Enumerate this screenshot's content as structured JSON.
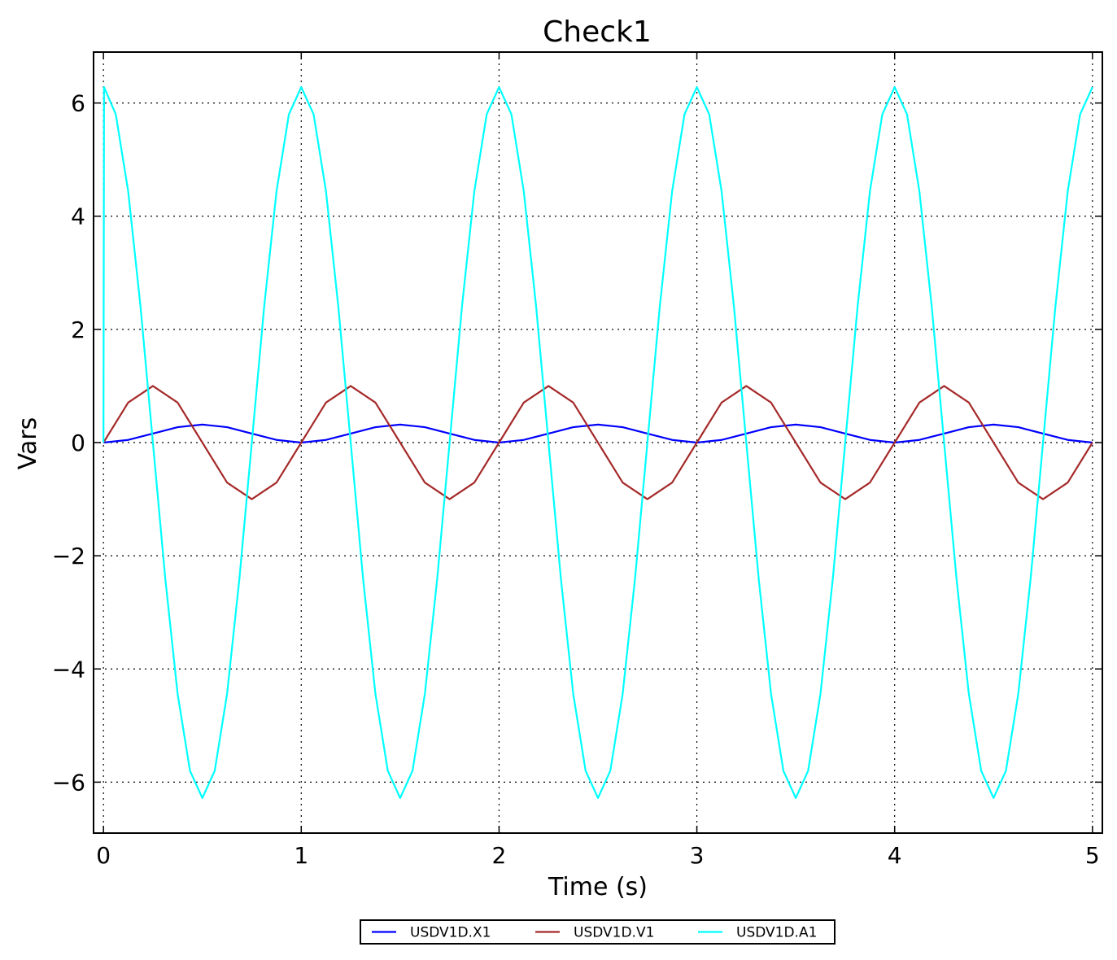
{
  "chart_data": {
    "type": "line",
    "title": "Check1",
    "xlabel": "Time (s)",
    "ylabel": "Vars",
    "xlim": [
      -0.05,
      5.05
    ],
    "ylim": [
      -6.9,
      6.9
    ],
    "xticks": [
      0,
      1,
      2,
      3,
      4,
      5
    ],
    "xtick_labels": [
      "0",
      "1",
      "2",
      "3",
      "4",
      "5"
    ],
    "yticks": [
      -6,
      -4,
      -2,
      0,
      2,
      4,
      6
    ],
    "ytick_labels": [
      "−6",
      "−4",
      "−2",
      "0",
      "2",
      "4",
      "6"
    ],
    "grid": true,
    "grid_style": "dotted",
    "legend_position": "bottom-center",
    "series": [
      {
        "name": "USDV1D.X1",
        "color": "#0000ff",
        "x": [
          0,
          0.125,
          0.25,
          0.375,
          0.5,
          0.625,
          0.75,
          0.875,
          1,
          1.125,
          1.25,
          1.375,
          1.5,
          1.625,
          1.75,
          1.875,
          2,
          2.125,
          2.25,
          2.375,
          2.5,
          2.625,
          2.75,
          2.875,
          3,
          3.125,
          3.25,
          3.375,
          3.5,
          3.625,
          3.75,
          3.875,
          4,
          4.125,
          4.25,
          4.375,
          4.5,
          4.625,
          4.75,
          4.875,
          5
        ],
        "y": [
          0,
          0.047,
          0.159,
          0.272,
          0.318,
          0.272,
          0.159,
          0.047,
          0,
          0.047,
          0.159,
          0.272,
          0.318,
          0.272,
          0.159,
          0.047,
          0,
          0.047,
          0.159,
          0.272,
          0.318,
          0.272,
          0.159,
          0.047,
          0,
          0.047,
          0.159,
          0.272,
          0.318,
          0.272,
          0.159,
          0.047,
          0,
          0.047,
          0.159,
          0.272,
          0.318,
          0.272,
          0.159,
          0.047,
          0
        ]
      },
      {
        "name": "USDV1D.V1",
        "color": "#a52a2a",
        "x": [
          0,
          0.125,
          0.25,
          0.375,
          0.5,
          0.625,
          0.75,
          0.875,
          1,
          1.125,
          1.25,
          1.375,
          1.5,
          1.625,
          1.75,
          1.875,
          2,
          2.125,
          2.25,
          2.375,
          2.5,
          2.625,
          2.75,
          2.875,
          3,
          3.125,
          3.25,
          3.375,
          3.5,
          3.625,
          3.75,
          3.875,
          4,
          4.125,
          4.25,
          4.375,
          4.5,
          4.625,
          4.75,
          4.875,
          5
        ],
        "y": [
          0,
          0.707,
          1,
          0.707,
          0,
          -0.707,
          -1,
          -0.707,
          0,
          0.707,
          1,
          0.707,
          0,
          -0.707,
          -1,
          -0.707,
          0,
          0.707,
          1,
          0.707,
          0,
          -0.707,
          -1,
          -0.707,
          0,
          0.707,
          1,
          0.707,
          0,
          -0.707,
          -1,
          -0.707,
          0,
          0.707,
          1,
          0.707,
          0,
          -0.707,
          -1,
          -0.707,
          0
        ]
      },
      {
        "name": "USDV1D.A1",
        "color": "#00ffff",
        "x": [
          0,
          0.003,
          0.0625,
          0.125,
          0.1875,
          0.25,
          0.3125,
          0.375,
          0.4375,
          0.5,
          0.5625,
          0.625,
          0.6875,
          0.75,
          0.8125,
          0.875,
          0.9375,
          1,
          1.0625,
          1.125,
          1.1875,
          1.25,
          1.3125,
          1.375,
          1.4375,
          1.5,
          1.5625,
          1.625,
          1.6875,
          1.75,
          1.8125,
          1.875,
          1.9375,
          2,
          2.0625,
          2.125,
          2.1875,
          2.25,
          2.3125,
          2.375,
          2.4375,
          2.5,
          2.5625,
          2.625,
          2.6875,
          2.75,
          2.8125,
          2.875,
          2.9375,
          3,
          3.0625,
          3.125,
          3.1875,
          3.25,
          3.3125,
          3.375,
          3.4375,
          3.5,
          3.5625,
          3.625,
          3.6875,
          3.75,
          3.8125,
          3.875,
          3.9375,
          4,
          4.0625,
          4.125,
          4.1875,
          4.25,
          4.3125,
          4.375,
          4.4375,
          4.5,
          4.5625,
          4.625,
          4.6875,
          4.75,
          4.8125,
          4.875,
          4.9375,
          5
        ],
        "y": [
          0,
          6.28,
          5.8,
          4.44,
          2.4,
          0,
          -2.4,
          -4.44,
          -5.8,
          -6.28,
          -5.8,
          -4.44,
          -2.4,
          0,
          2.4,
          4.44,
          5.8,
          6.28,
          5.8,
          4.44,
          2.4,
          0,
          -2.4,
          -4.44,
          -5.8,
          -6.28,
          -5.8,
          -4.44,
          -2.4,
          0,
          2.4,
          4.44,
          5.8,
          6.28,
          5.8,
          4.44,
          2.4,
          0,
          -2.4,
          -4.44,
          -5.8,
          -6.28,
          -5.8,
          -4.44,
          -2.4,
          0,
          2.4,
          4.44,
          5.8,
          6.28,
          5.8,
          4.44,
          2.4,
          0,
          -2.4,
          -4.44,
          -5.8,
          -6.28,
          -5.8,
          -4.44,
          -2.4,
          0,
          2.4,
          4.44,
          5.8,
          6.28,
          5.8,
          4.44,
          2.4,
          0,
          -2.4,
          -4.44,
          -5.8,
          -6.28,
          -5.8,
          -4.44,
          -2.4,
          0,
          2.4,
          4.44,
          5.8,
          6.28
        ]
      }
    ]
  }
}
